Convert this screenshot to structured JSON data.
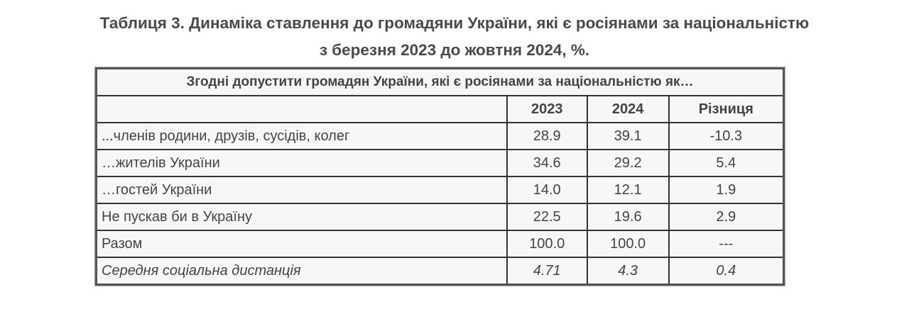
{
  "title_line1": "Таблиця 3. Динаміка ставлення до громадяни України, які є росіянами за національністю",
  "title_line2": "з березня 2023 до жовтня 2024, %.",
  "table": {
    "caption": "Згодні допустити громадян України, які є росіянами за національністю як…",
    "headers": [
      "",
      "2023",
      "2024",
      "Різниця"
    ],
    "rows": [
      [
        "...членів родини, друзів, сусідів, колег",
        "28.9",
        "39.1",
        "-10.3"
      ],
      [
        "…жителів України",
        "34.6",
        "29.2",
        "5.4"
      ],
      [
        "…гостей України",
        "14.0",
        "12.1",
        "1.9"
      ],
      [
        "Не пускав би в Україну",
        "22.5",
        "19.6",
        "2.9"
      ],
      [
        "Разом",
        "100.0",
        "100.0",
        "---"
      ],
      [
        "Середня соціальна дистанція",
        "4.71",
        "4.3",
        "0.4"
      ]
    ]
  }
}
